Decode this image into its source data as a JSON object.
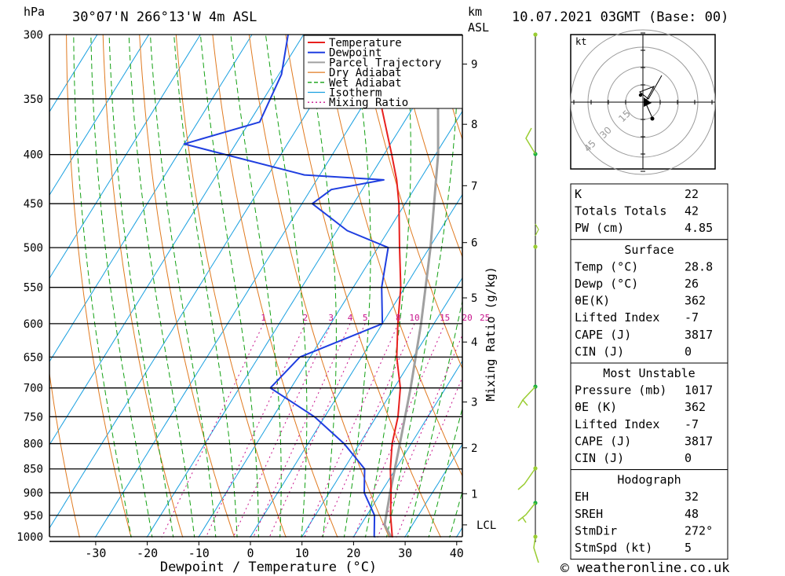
{
  "header": {
    "pressure_unit": "hPa",
    "location": "30°07'N  266°13'W  4m  ASL",
    "height_unit": "km",
    "height_unit2": "ASL",
    "datetime": "10.07.2021  03GMT  (Base: 00)"
  },
  "chart_data": {
    "type": "skew-t",
    "xlabel": "Dewpoint / Temperature (°C)",
    "mixing_ratio_label": "Mixing Ratio (g/kg)",
    "x_ticks": [
      -30,
      -20,
      -10,
      0,
      10,
      20,
      30,
      40
    ],
    "pressure_levels": [
      300,
      350,
      400,
      450,
      500,
      550,
      600,
      650,
      700,
      750,
      800,
      850,
      900,
      950,
      1000
    ],
    "height_km_ticks": [
      {
        "label": "9",
        "p": 322
      },
      {
        "label": "8",
        "p": 372
      },
      {
        "label": "7",
        "p": 431
      },
      {
        "label": "6",
        "p": 494
      },
      {
        "label": "5",
        "p": 564
      },
      {
        "label": "4",
        "p": 627
      },
      {
        "label": "3",
        "p": 724
      },
      {
        "label": "2",
        "p": 808
      },
      {
        "label": "1",
        "p": 902
      },
      {
        "label": "LCL",
        "p": 972
      }
    ],
    "mixing_ratio_ticks": [
      "1",
      "2",
      "3",
      "4",
      "5",
      "8",
      "10",
      "15",
      "20",
      "25"
    ],
    "legend": [
      "Temperature",
      "Dewpoint",
      "Parcel Trajectory",
      "Dry Adiabat",
      "Wet Adiabat",
      "Isotherm",
      "Mixing Ratio"
    ],
    "colors": {
      "temperature": "#e8201e",
      "dewpoint": "#1f3ee0",
      "parcel": "#a0a0a0",
      "dry_adiabat": "#e07a20",
      "wet_adiabat": "#12a012",
      "isotherm": "#1aa0e0",
      "mixing_ratio": "#c8148c",
      "wind": "#9acd32"
    },
    "temperature_profile": [
      {
        "p": 1017,
        "t": 28.8
      },
      {
        "p": 1000,
        "t": 27.5
      },
      {
        "p": 950,
        "t": 24.6
      },
      {
        "p": 900,
        "t": 22.0
      },
      {
        "p": 850,
        "t": 19.0
      },
      {
        "p": 800,
        "t": 16.3
      },
      {
        "p": 750,
        "t": 14.2
      },
      {
        "p": 700,
        "t": 11.2
      },
      {
        "p": 650,
        "t": 6.8
      },
      {
        "p": 600,
        "t": 3.0
      },
      {
        "p": 550,
        "t": -0.8
      },
      {
        "p": 500,
        "t": -5.8
      },
      {
        "p": 450,
        "t": -11.2
      },
      {
        "p": 425,
        "t": -14.5
      },
      {
        "p": 400,
        "t": -18.5
      },
      {
        "p": 350,
        "t": -27.5
      },
      {
        "p": 300,
        "t": -38.0
      }
    ],
    "dewpoint_profile": [
      {
        "p": 1017,
        "t": 26.0
      },
      {
        "p": 1000,
        "t": 24.0
      },
      {
        "p": 950,
        "t": 21.5
      },
      {
        "p": 900,
        "t": 16.8
      },
      {
        "p": 850,
        "t": 14.0
      },
      {
        "p": 800,
        "t": 7.0
      },
      {
        "p": 750,
        "t": -2.0
      },
      {
        "p": 700,
        "t": -14.0
      },
      {
        "p": 650,
        "t": -12.0
      },
      {
        "p": 600,
        "t": 0.0
      },
      {
        "p": 550,
        "t": -4.5
      },
      {
        "p": 500,
        "t": -8.0
      },
      {
        "p": 480,
        "t": -18.0
      },
      {
        "p": 450,
        "t": -28.0
      },
      {
        "p": 435,
        "t": -26.0
      },
      {
        "p": 425,
        "t": -17.0
      },
      {
        "p": 420,
        "t": -33.0
      },
      {
        "p": 390,
        "t": -60.0
      },
      {
        "p": 370,
        "t": -48.0
      },
      {
        "p": 330,
        "t": -49.5
      },
      {
        "p": 300,
        "t": -53.0
      }
    ],
    "parcel_profile": [
      {
        "p": 1017,
        "t": 28.8
      },
      {
        "p": 972,
        "t": 24.6
      },
      {
        "p": 900,
        "t": 21.8
      },
      {
        "p": 800,
        "t": 17.8
      },
      {
        "p": 700,
        "t": 13.2
      },
      {
        "p": 600,
        "t": 7.5
      },
      {
        "p": 500,
        "t": 0.2
      },
      {
        "p": 400,
        "t": -9.5
      },
      {
        "p": 350,
        "t": -16.2
      },
      {
        "p": 300,
        "t": -24.5
      }
    ]
  },
  "hodograph": {
    "unit": "kt",
    "ring_labels": [
      "15",
      "30",
      "45"
    ]
  },
  "indices": {
    "general": [
      {
        "label": "K",
        "value": "22"
      },
      {
        "label": "Totals Totals",
        "value": "42"
      },
      {
        "label": "PW (cm)",
        "value": "4.85"
      }
    ],
    "surface_title": "Surface",
    "surface": [
      {
        "label": "Temp (°C)",
        "value": "28.8"
      },
      {
        "label": "Dewp (°C)",
        "value": "26"
      },
      {
        "label": "θE(K)",
        "value": "362"
      },
      {
        "label": "Lifted Index",
        "value": "-7"
      },
      {
        "label": "CAPE (J)",
        "value": "3817"
      },
      {
        "label": "CIN (J)",
        "value": "0"
      }
    ],
    "unstable_title": "Most Unstable",
    "unstable": [
      {
        "label": "Pressure (mb)",
        "value": "1017"
      },
      {
        "label": "θE (K)",
        "value": "362"
      },
      {
        "label": "Lifted Index",
        "value": "-7"
      },
      {
        "label": "CAPE (J)",
        "value": "3817"
      },
      {
        "label": "CIN (J)",
        "value": "0"
      }
    ],
    "hodo_title": "Hodograph",
    "hodo": [
      {
        "label": "EH",
        "value": "32"
      },
      {
        "label": "SREH",
        "value": "48"
      },
      {
        "label": "StmDir",
        "value": "272°"
      },
      {
        "label": "StmSpd (kt)",
        "value": "5"
      }
    ]
  },
  "footer": {
    "copyright_symbol": "©",
    "site": "weatheronline.co.uk"
  }
}
